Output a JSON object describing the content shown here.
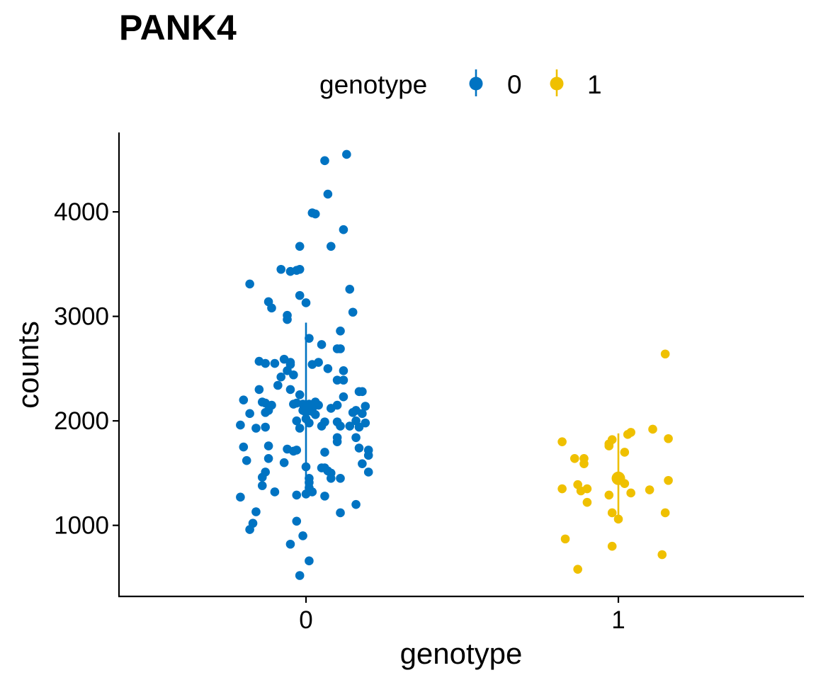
{
  "chart_data": {
    "type": "scatter",
    "title": "PANK4",
    "xlabel": "genotype",
    "ylabel": "counts",
    "categories": [
      "0",
      "1"
    ],
    "ylim": [
      320,
      4760
    ],
    "yticks": [
      1000,
      2000,
      3000,
      4000
    ],
    "grid": false,
    "legend": {
      "title": "genotype",
      "placement": "top",
      "entries": [
        "0",
        "1"
      ]
    },
    "colors": {
      "0": "#0073C2",
      "1": "#EFC000"
    },
    "series": [
      {
        "name": "0",
        "category": "0",
        "mean": 2110,
        "sd_lower": 1290,
        "sd_upper": 2940,
        "points": [
          [
            0.13,
            4550
          ],
          [
            0.06,
            4490
          ],
          [
            0.07,
            4170
          ],
          [
            0.02,
            3990
          ],
          [
            0.03,
            3980
          ],
          [
            0.12,
            3830
          ],
          [
            -0.02,
            3670
          ],
          [
            0.08,
            3670
          ],
          [
            -0.08,
            3450
          ],
          [
            -0.05,
            3430
          ],
          [
            -0.03,
            3440
          ],
          [
            -0.02,
            3450
          ],
          [
            -0.18,
            3310
          ],
          [
            0.14,
            3260
          ],
          [
            -0.02,
            3200
          ],
          [
            -0.12,
            3140
          ],
          [
            -0.11,
            3080
          ],
          [
            0.0,
            3130
          ],
          [
            -0.06,
            3010
          ],
          [
            -0.06,
            2970
          ],
          [
            0.15,
            3040
          ],
          [
            0.11,
            2860
          ],
          [
            0.01,
            2790
          ],
          [
            0.05,
            2730
          ],
          [
            0.1,
            2690
          ],
          [
            0.11,
            2690
          ],
          [
            -0.15,
            2570
          ],
          [
            -0.07,
            2590
          ],
          [
            -0.05,
            2560
          ],
          [
            -0.13,
            2550
          ],
          [
            -0.1,
            2550
          ],
          [
            -0.05,
            2540
          ],
          [
            0.02,
            2540
          ],
          [
            0.04,
            2560
          ],
          [
            0.07,
            2500
          ],
          [
            0.12,
            2480
          ],
          [
            -0.06,
            2480
          ],
          [
            -0.04,
            2440
          ],
          [
            -0.08,
            2420
          ],
          [
            -0.09,
            2340
          ],
          [
            0.1,
            2390
          ],
          [
            0.12,
            2390
          ],
          [
            -0.05,
            2300
          ],
          [
            -0.15,
            2300
          ],
          [
            0.17,
            2280
          ],
          [
            0.18,
            2280
          ],
          [
            -0.02,
            2250
          ],
          [
            0.12,
            2230
          ],
          [
            -0.2,
            2200
          ],
          [
            -0.14,
            2180
          ],
          [
            -0.13,
            2170
          ],
          [
            -0.11,
            2150
          ],
          [
            -0.04,
            2160
          ],
          [
            -0.03,
            2170
          ],
          [
            -0.01,
            2160
          ],
          [
            0.01,
            2160
          ],
          [
            0.03,
            2180
          ],
          [
            0.04,
            2150
          ],
          [
            0.1,
            2150
          ],
          [
            0.02,
            2120
          ],
          [
            -0.01,
            2100
          ],
          [
            0.01,
            2110
          ],
          [
            0.08,
            2120
          ],
          [
            0.16,
            2100
          ],
          [
            0.19,
            2140
          ],
          [
            0.18,
            2070
          ],
          [
            0.15,
            2080
          ],
          [
            -0.18,
            2070
          ],
          [
            -0.13,
            2080
          ],
          [
            -0.12,
            2100
          ],
          [
            0.02,
            2090
          ],
          [
            0.03,
            2060
          ],
          [
            0.0,
            2020
          ],
          [
            0.1,
            1990
          ],
          [
            0.16,
            2000
          ],
          [
            0.19,
            1980
          ],
          [
            -0.21,
            1960
          ],
          [
            -0.16,
            1930
          ],
          [
            -0.13,
            1940
          ],
          [
            -0.03,
            2000
          ],
          [
            0.01,
            1980
          ],
          [
            0.05,
            1950
          ],
          [
            0.06,
            1990
          ],
          [
            0.11,
            1950
          ],
          [
            0.14,
            1950
          ],
          [
            0.17,
            1940
          ],
          [
            -0.02,
            1930
          ],
          [
            0.16,
            1840
          ],
          [
            0.1,
            1800
          ],
          [
            0.1,
            1840
          ],
          [
            -0.12,
            1760
          ],
          [
            -0.2,
            1750
          ],
          [
            -0.06,
            1730
          ],
          [
            -0.04,
            1710
          ],
          [
            -0.03,
            1720
          ],
          [
            0.17,
            1740
          ],
          [
            0.2,
            1720
          ],
          [
            0.2,
            1670
          ],
          [
            0.06,
            1700
          ],
          [
            -0.12,
            1640
          ],
          [
            -0.19,
            1620
          ],
          [
            -0.07,
            1600
          ],
          [
            0.05,
            1550
          ],
          [
            0.06,
            1550
          ],
          [
            0.18,
            1590
          ],
          [
            0.0,
            1560
          ],
          [
            0.07,
            1520
          ],
          [
            0.08,
            1500
          ],
          [
            -0.13,
            1510
          ],
          [
            -0.14,
            1460
          ],
          [
            0.08,
            1450
          ],
          [
            0.11,
            1450
          ],
          [
            0.2,
            1510
          ],
          [
            0.01,
            1450
          ],
          [
            0.01,
            1410
          ],
          [
            0.01,
            1360
          ],
          [
            -0.14,
            1380
          ],
          [
            -0.1,
            1320
          ],
          [
            -0.03,
            1290
          ],
          [
            0.0,
            1300
          ],
          [
            0.01,
            1330
          ],
          [
            0.02,
            1320
          ],
          [
            0.06,
            1280
          ],
          [
            -0.21,
            1270
          ],
          [
            0.16,
            1200
          ],
          [
            -0.16,
            1130
          ],
          [
            0.11,
            1120
          ],
          [
            -0.03,
            1040
          ],
          [
            -0.17,
            1020
          ],
          [
            -0.18,
            960
          ],
          [
            -0.01,
            900
          ],
          [
            -0.05,
            820
          ],
          [
            0.01,
            660
          ],
          [
            -0.02,
            520
          ]
        ]
      },
      {
        "name": "1",
        "category": "1",
        "mean": 1450,
        "sd_lower": 1040,
        "sd_upper": 1880,
        "points": [
          [
            0.15,
            2640
          ],
          [
            0.11,
            1920
          ],
          [
            0.04,
            1890
          ],
          [
            0.03,
            1870
          ],
          [
            0.16,
            1830
          ],
          [
            -0.02,
            1820
          ],
          [
            -0.03,
            1780
          ],
          [
            -0.03,
            1760
          ],
          [
            -0.18,
            1800
          ],
          [
            0.02,
            1700
          ],
          [
            -0.14,
            1640
          ],
          [
            -0.11,
            1640
          ],
          [
            -0.11,
            1590
          ],
          [
            0.16,
            1430
          ],
          [
            0.02,
            1400
          ],
          [
            -0.13,
            1390
          ],
          [
            -0.18,
            1350
          ],
          [
            -0.1,
            1350
          ],
          [
            -0.12,
            1330
          ],
          [
            0.04,
            1310
          ],
          [
            0.1,
            1340
          ],
          [
            -0.03,
            1290
          ],
          [
            -0.1,
            1220
          ],
          [
            -0.02,
            1120
          ],
          [
            0.15,
            1120
          ],
          [
            0.0,
            1060
          ],
          [
            -0.17,
            870
          ],
          [
            -0.02,
            800
          ],
          [
            0.14,
            720
          ],
          [
            -0.13,
            580
          ]
        ]
      }
    ]
  }
}
